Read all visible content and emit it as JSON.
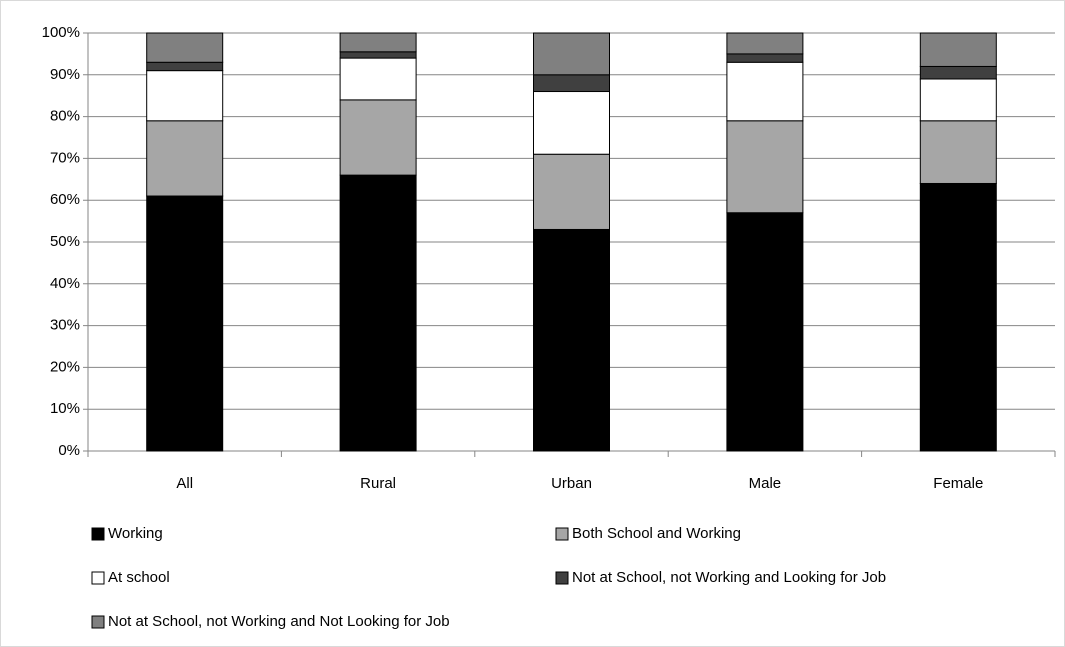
{
  "chart_data": {
    "type": "stacked-bar",
    "categories": [
      "All",
      "Rural",
      "Urban",
      "Male",
      "Female"
    ],
    "series": [
      {
        "name": "Working",
        "color": "#000000",
        "values": [
          61,
          66,
          53,
          57,
          64
        ]
      },
      {
        "name": "Both School and Working",
        "color": "#a6a6a6",
        "values": [
          18,
          18,
          18,
          22,
          15
        ]
      },
      {
        "name": "At school",
        "color": "#ffffff",
        "values": [
          12,
          10,
          15,
          14,
          10
        ]
      },
      {
        "name": "Not at School, not Working and Looking for Job",
        "color": "#404040",
        "values": [
          2,
          1.5,
          4,
          2,
          3
        ]
      },
      {
        "name": "Not at School, not Working and Not Looking for Job",
        "color": "#808080",
        "values": [
          7,
          4.5,
          10,
          5,
          8
        ]
      }
    ],
    "ylim": [
      0,
      100
    ],
    "yticks": [
      {
        "value": 0,
        "label": "0%"
      },
      {
        "value": 10,
        "label": "10%"
      },
      {
        "value": 20,
        "label": "20%"
      },
      {
        "value": 30,
        "label": "30%"
      },
      {
        "value": 40,
        "label": "40%"
      },
      {
        "value": 50,
        "label": "50%"
      },
      {
        "value": 60,
        "label": "60%"
      },
      {
        "value": 70,
        "label": "70%"
      },
      {
        "value": 80,
        "label": "80%"
      },
      {
        "value": 90,
        "label": "90%"
      },
      {
        "value": 100,
        "label": "100%"
      }
    ],
    "grid": true
  }
}
